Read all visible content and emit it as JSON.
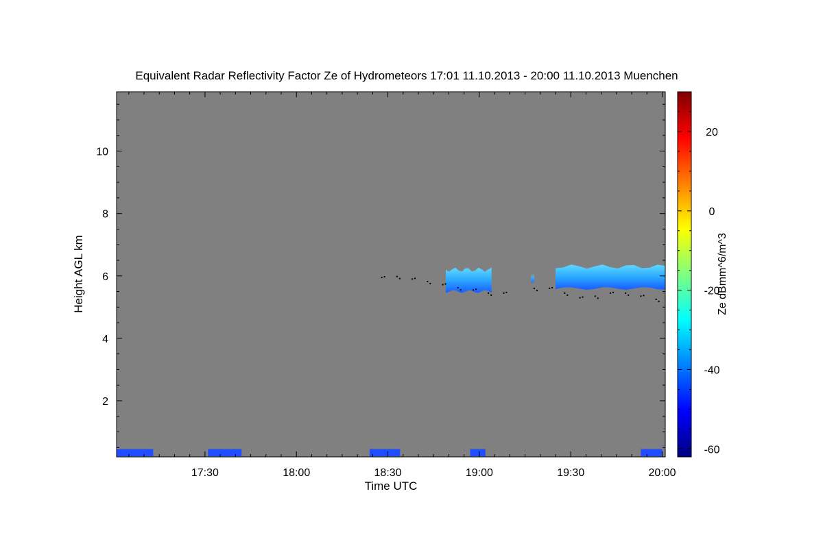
{
  "chart_data": {
    "type": "heatmap",
    "title": "Equivalent Radar Reflectivity Factor Ze of Hydrometeors   17:01 11.10.2013 - 20:00 11.10.2013 Muenchen",
    "xlabel": "Time UTC",
    "ylabel": "Height AGL km",
    "colorbar_label": "Ze dBmm^6/m^3",
    "xlim": [
      "17:01",
      "20:01"
    ],
    "ylim": [
      0.2,
      11.9
    ],
    "x_ticks": [
      "17:30",
      "18:00",
      "18:30",
      "19:00",
      "19:30",
      "20:00"
    ],
    "y_ticks": [
      2,
      4,
      6,
      8,
      10
    ],
    "colorbar_range": [
      -62,
      30
    ],
    "colorbar_ticks": [
      20,
      0,
      -20,
      -40,
      -60
    ],
    "background_color": "#808080",
    "echo_regions": [
      {
        "start": "18:49",
        "end": "19:04",
        "base_km": 5.5,
        "top_km": 6.2,
        "ze_min": -40,
        "ze_max": -30
      },
      {
        "start": "19:25",
        "end": "20:01",
        "base_km": 5.6,
        "top_km": 6.3,
        "ze_min": -42,
        "ze_max": -25
      },
      {
        "start": "19:17",
        "end": "19:18",
        "base_km": 5.8,
        "top_km": 6.0,
        "ze_min": -45,
        "ze_max": -40
      }
    ],
    "near_surface_echo": [
      {
        "start": "17:01",
        "end": "17:13",
        "ze": -45
      },
      {
        "start": "17:31",
        "end": "17:42",
        "ze": -45
      },
      {
        "start": "18:24",
        "end": "18:34",
        "ze": -47
      },
      {
        "start": "18:57",
        "end": "19:02",
        "ze": -45
      },
      {
        "start": "19:53",
        "end": "20:00",
        "ze": -45
      }
    ],
    "cloud_base_dots": [
      {
        "time": "18:28",
        "height_km": 5.95
      },
      {
        "time": "18:33",
        "height_km": 5.98
      },
      {
        "time": "18:38",
        "height_km": 5.9
      },
      {
        "time": "18:43",
        "height_km": 5.82
      },
      {
        "time": "18:48",
        "height_km": 5.72
      },
      {
        "time": "18:53",
        "height_km": 5.62
      },
      {
        "time": "18:58",
        "height_km": 5.55
      },
      {
        "time": "19:03",
        "height_km": 5.45
      },
      {
        "time": "19:08",
        "height_km": 5.45
      },
      {
        "time": "19:18",
        "height_km": 5.6
      },
      {
        "time": "19:23",
        "height_km": 5.6
      },
      {
        "time": "19:28",
        "height_km": 5.45
      },
      {
        "time": "19:33",
        "height_km": 5.3
      },
      {
        "time": "19:38",
        "height_km": 5.35
      },
      {
        "time": "19:43",
        "height_km": 5.45
      },
      {
        "time": "19:48",
        "height_km": 5.45
      },
      {
        "time": "19:53",
        "height_km": 5.35
      },
      {
        "time": "19:58",
        "height_km": 5.25
      }
    ]
  },
  "colors": {
    "colorbar_stops": [
      "#00007f",
      "#0000ff",
      "#007fff",
      "#00ffff",
      "#7fff7f",
      "#ffff00",
      "#ff7f00",
      "#ff0000",
      "#7f0000"
    ],
    "dots": "#000000"
  }
}
